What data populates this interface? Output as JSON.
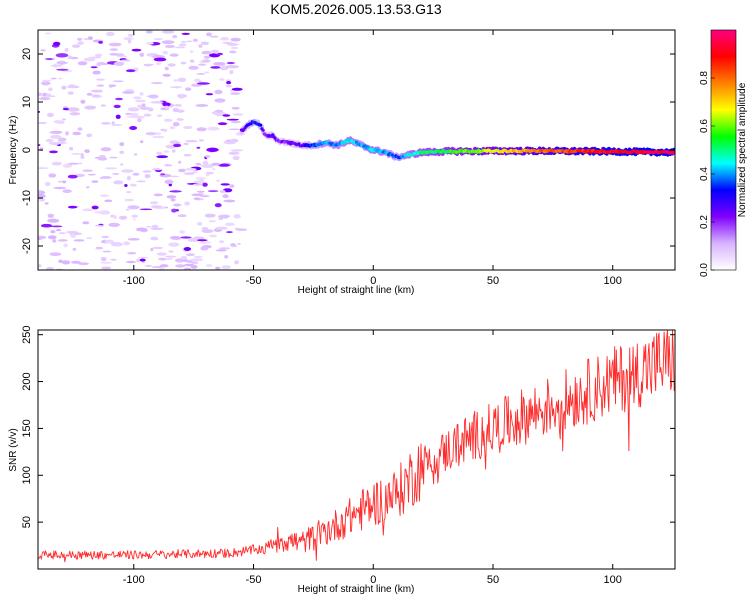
{
  "title": "KOM5.2026.005.13.53.G13",
  "chart_data": [
    {
      "type": "heatmap",
      "name": "spectrogram",
      "xlabel": "Height of straight line (km)",
      "ylabel": "Frequency (Hz)",
      "xlim": [
        -140,
        126
      ],
      "ylim": [
        -25,
        25
      ],
      "xticks": [
        -100,
        -50,
        0,
        50,
        100
      ],
      "yticks": [
        -20,
        -10,
        0,
        10,
        20
      ],
      "xtick_labels": [
        "-100",
        "-50",
        "0",
        "50",
        "100"
      ],
      "ytick_labels": [
        "-20",
        "-10",
        "0",
        "10",
        "20"
      ],
      "colorbar": {
        "label": "Normalized spectral amplitude",
        "range": [
          0,
          1
        ],
        "ticks": [
          0.0,
          0.2,
          0.4,
          0.6,
          0.8
        ],
        "tick_labels": [
          "0.0",
          "0.2",
          "0.4",
          "0.6",
          "0.8"
        ],
        "stops": [
          "#ffffff",
          "#d9b3ff",
          "#7f00ff",
          "#0000ff",
          "#00ffff",
          "#00ff00",
          "#ffff00",
          "#ff8000",
          "#ff0000",
          "#ff0080"
        ]
      },
      "ridge": {
        "x": [
          -55,
          -50,
          -47,
          -45,
          -42,
          -40,
          -35,
          -30,
          -25,
          -20,
          -15,
          -10,
          -5,
          0,
          5,
          10,
          15,
          20,
          30,
          50,
          70,
          100,
          126
        ],
        "freq": [
          4,
          6,
          5,
          3,
          3,
          2,
          1.5,
          1,
          1,
          1.5,
          1,
          2,
          1,
          0,
          -0.5,
          -1.5,
          -1,
          -0.5,
          -0.3,
          -0.2,
          -0.2,
          -0.3,
          -0.5
        ],
        "amplitude": [
          0.25,
          0.35,
          0.3,
          0.2,
          0.25,
          0.2,
          0.22,
          0.25,
          0.35,
          0.4,
          0.4,
          0.45,
          0.4,
          0.45,
          0.4,
          0.35,
          0.45,
          0.5,
          0.55,
          0.65,
          0.8,
          0.9,
          0.95
        ]
      }
    },
    {
      "type": "line",
      "name": "snr",
      "xlabel": "Height of straight line (km)",
      "ylabel": "SNR (v/v)",
      "xlim": [
        -140,
        126
      ],
      "ylim": [
        0,
        255
      ],
      "xticks": [
        -100,
        -50,
        0,
        50,
        100
      ],
      "yticks": [
        50,
        100,
        150,
        200,
        250
      ],
      "xtick_labels": [
        "-100",
        "-50",
        "0",
        "50",
        "100"
      ],
      "ytick_labels": [
        "50",
        "100",
        "150",
        "200",
        "250"
      ],
      "color": "#ff2a2a",
      "trend": {
        "x": [
          -140,
          -100,
          -60,
          -45,
          -40,
          -30,
          -20,
          -10,
          0,
          10,
          20,
          30,
          40,
          50,
          60,
          70,
          80,
          90,
          100,
          110,
          126
        ],
        "y": [
          15,
          15,
          17,
          22,
          32,
          28,
          40,
          55,
          70,
          80,
          110,
          125,
          140,
          150,
          160,
          170,
          180,
          190,
          200,
          210,
          225
        ]
      }
    }
  ]
}
